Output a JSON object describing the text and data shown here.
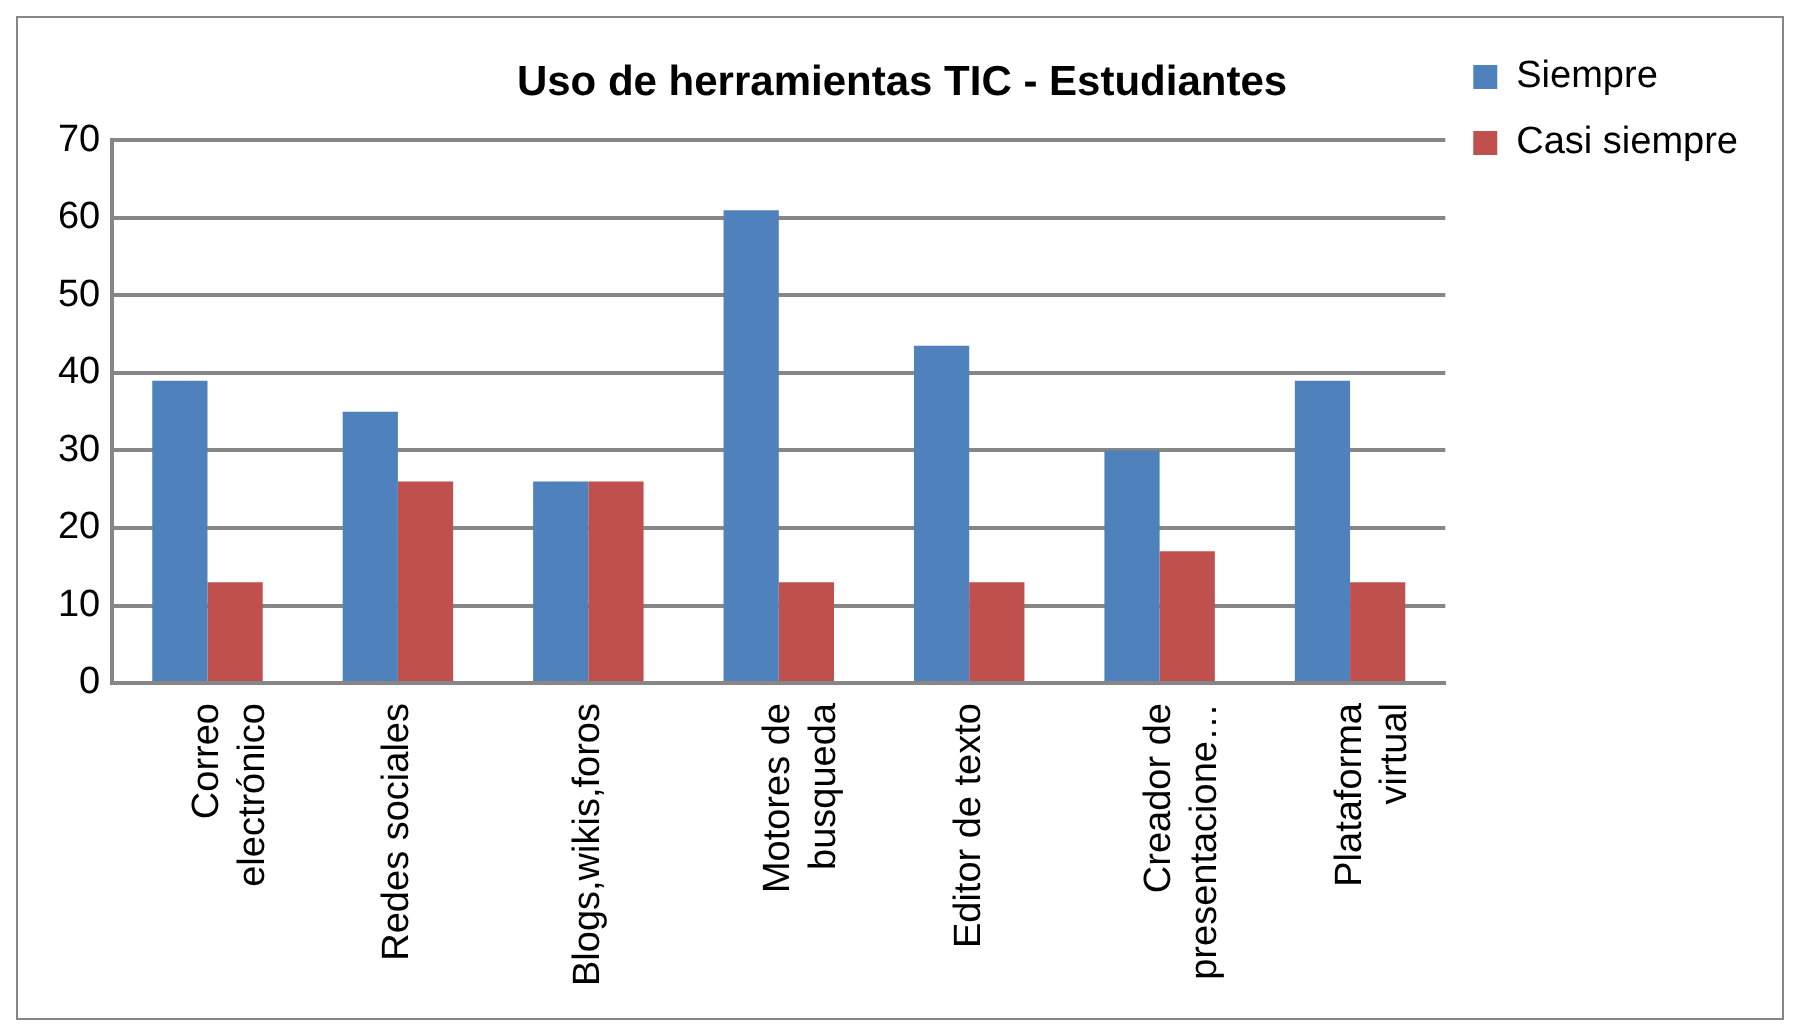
{
  "chart_data": {
    "type": "bar",
    "title": "Uso de herramientas TIC - Estudiantes",
    "categories": [
      "Correo electrónico",
      "Redes sociales",
      "Blogs,wikis,foros",
      "Motores de busqueda",
      "Editor de texto",
      "Creador de presentacione…",
      "Plataforma virtual"
    ],
    "series": [
      {
        "name": "Siempre",
        "color": "#4f81bd",
        "values": [
          39,
          35,
          26,
          61,
          43.5,
          30,
          39
        ]
      },
      {
        "name": "Casi siempre",
        "color": "#c0504d",
        "values": [
          13,
          26,
          26,
          13,
          13,
          17,
          13
        ]
      }
    ],
    "ylim": [
      0,
      70
    ],
    "yticks": [
      0,
      10,
      20,
      30,
      40,
      50,
      60,
      70
    ],
    "grid": "y",
    "legend": "right"
  }
}
